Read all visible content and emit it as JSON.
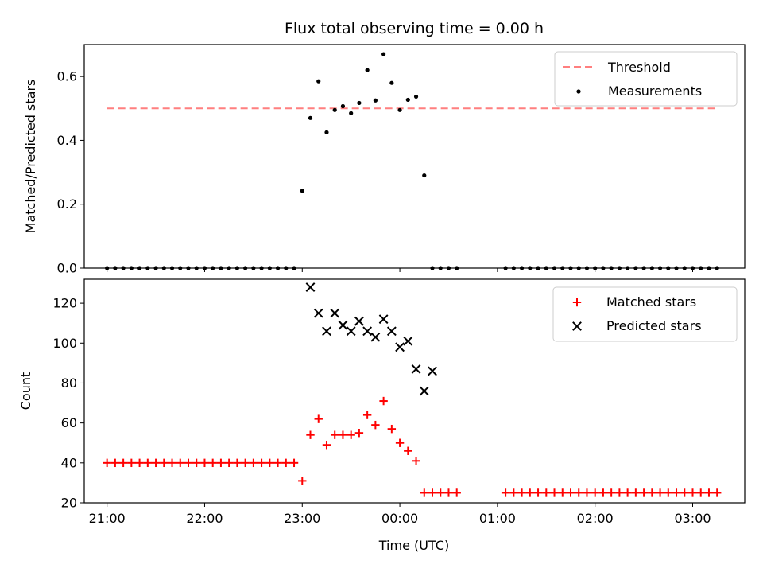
{
  "figure": {
    "title": "Flux total observing time = 0.00 h",
    "xlabel": "Time (UTC)"
  },
  "chart_data": [
    {
      "type": "scatter",
      "panel": "top",
      "ylabel": "Matched/Predicted stars",
      "ylim": [
        0,
        0.7
      ],
      "yticks": [
        "0.0",
        "0.2",
        "0.4",
        "0.6"
      ],
      "legend": "top-right",
      "threshold": {
        "name": "Threshold",
        "value": 0.5,
        "x_start": "21:00",
        "x_end": "03:15",
        "color": "#ff7f7f"
      },
      "series": [
        {
          "name": "Measurements",
          "color": "#000000",
          "x": [
            "21:00",
            "21:05",
            "21:10",
            "21:15",
            "21:20",
            "21:25",
            "21:30",
            "21:35",
            "21:40",
            "21:45",
            "21:50",
            "21:55",
            "22:00",
            "22:05",
            "22:10",
            "22:15",
            "22:20",
            "22:25",
            "22:30",
            "22:35",
            "22:40",
            "22:45",
            "22:50",
            "22:55",
            "23:00",
            "23:05",
            "23:10",
            "23:15",
            "23:20",
            "23:25",
            "23:30",
            "23:35",
            "23:40",
            "23:45",
            "23:50",
            "23:55",
            "00:00",
            "00:05",
            "00:10",
            "00:15",
            "00:20",
            "00:25",
            "00:30",
            "00:35",
            "01:05",
            "01:10",
            "01:15",
            "01:20",
            "01:25",
            "01:30",
            "01:35",
            "01:40",
            "01:45",
            "01:50",
            "01:55",
            "02:00",
            "02:05",
            "02:10",
            "02:15",
            "02:20",
            "02:25",
            "02:30",
            "02:35",
            "02:40",
            "02:45",
            "02:50",
            "02:55",
            "03:00",
            "03:05",
            "03:10",
            "03:15"
          ],
          "y": [
            0,
            0,
            0,
            0,
            0,
            0,
            0,
            0,
            0,
            0,
            0,
            0,
            0,
            0,
            0,
            0,
            0,
            0,
            0,
            0,
            0,
            0,
            0,
            0,
            0.242,
            0.47,
            0.585,
            0.425,
            0.495,
            0.507,
            0.485,
            0.517,
            0.62,
            0.525,
            0.67,
            0.58,
            0.495,
            0.527,
            0.537,
            0.29,
            0,
            0,
            0,
            0,
            0,
            0,
            0,
            0,
            0,
            0,
            0,
            0,
            0,
            0,
            0,
            0,
            0,
            0,
            0,
            0,
            0,
            0,
            0,
            0,
            0,
            0,
            0,
            0,
            0,
            0,
            0
          ]
        }
      ]
    },
    {
      "type": "scatter",
      "panel": "bottom",
      "ylabel": "Count",
      "ylim": [
        20,
        132
      ],
      "yticks": [
        "20",
        "40",
        "60",
        "80",
        "100",
        "120"
      ],
      "xticks": [
        "21:00",
        "22:00",
        "23:00",
        "00:00",
        "01:00",
        "02:00",
        "03:00"
      ],
      "legend": "top-right",
      "series": [
        {
          "name": "Matched stars",
          "marker": "+",
          "color": "#ff0000",
          "x": [
            "21:00",
            "21:05",
            "21:10",
            "21:15",
            "21:20",
            "21:25",
            "21:30",
            "21:35",
            "21:40",
            "21:45",
            "21:50",
            "21:55",
            "22:00",
            "22:05",
            "22:10",
            "22:15",
            "22:20",
            "22:25",
            "22:30",
            "22:35",
            "22:40",
            "22:45",
            "22:50",
            "22:55",
            "23:00",
            "23:05",
            "23:10",
            "23:15",
            "23:20",
            "23:25",
            "23:30",
            "23:35",
            "23:40",
            "23:45",
            "23:50",
            "23:55",
            "00:00",
            "00:05",
            "00:10",
            "00:15",
            "00:20",
            "00:25",
            "00:30",
            "00:35",
            "01:05",
            "01:10",
            "01:15",
            "01:20",
            "01:25",
            "01:30",
            "01:35",
            "01:40",
            "01:45",
            "01:50",
            "01:55",
            "02:00",
            "02:05",
            "02:10",
            "02:15",
            "02:20",
            "02:25",
            "02:30",
            "02:35",
            "02:40",
            "02:45",
            "02:50",
            "02:55",
            "03:00",
            "03:05",
            "03:10",
            "03:15"
          ],
          "y": [
            40,
            40,
            40,
            40,
            40,
            40,
            40,
            40,
            40,
            40,
            40,
            40,
            40,
            40,
            40,
            40,
            40,
            40,
            40,
            40,
            40,
            40,
            40,
            40,
            31,
            54,
            62,
            49,
            54,
            54,
            54,
            55,
            64,
            59,
            71,
            57,
            50,
            46,
            41,
            25,
            25,
            25,
            25,
            25,
            25,
            25,
            25,
            25,
            25,
            25,
            25,
            25,
            25,
            25,
            25,
            25,
            25,
            25,
            25,
            25,
            25,
            25,
            25,
            25,
            25,
            25,
            25,
            25,
            25,
            25,
            25
          ]
        },
        {
          "name": "Predicted stars",
          "marker": "x",
          "color": "#000000",
          "x": [
            "23:05",
            "23:10",
            "23:15",
            "23:20",
            "23:25",
            "23:30",
            "23:35",
            "23:40",
            "23:45",
            "23:50",
            "23:55",
            "00:00",
            "00:05",
            "00:10",
            "00:15",
            "00:20"
          ],
          "y": [
            128,
            115,
            106,
            115,
            109,
            106,
            111,
            106,
            103,
            112,
            106,
            98,
            101,
            87,
            76,
            86
          ]
        }
      ]
    }
  ]
}
